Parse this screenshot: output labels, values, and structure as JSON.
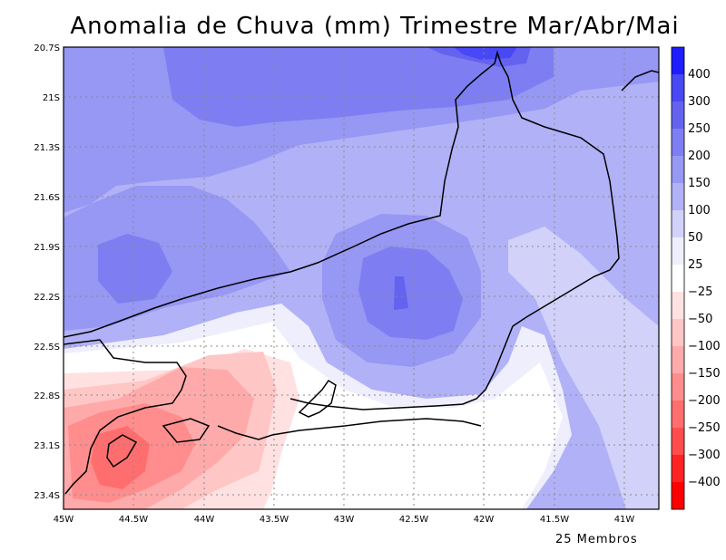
{
  "title": "Anomalia de Chuva (mm) Trimestre Mar/Abr/Mai",
  "footer": "25 Membros",
  "lat_ticks": [
    "20.7S",
    "21S",
    "21.3S",
    "21.6S",
    "21.9S",
    "22.2S",
    "22.5S",
    "22.8S",
    "23.1S",
    "23.4S"
  ],
  "lon_ticks": [
    "45W",
    "44.5W",
    "44W",
    "43.5W",
    "43W",
    "42.5W",
    "42W",
    "41.5W",
    "41W"
  ],
  "colorbar": {
    "labels": [
      "400",
      "300",
      "250",
      "200",
      "150",
      "100",
      "50",
      "25",
      "−25",
      "−50",
      "−100",
      "−150",
      "−200",
      "−250",
      "−300",
      "−400"
    ],
    "colors": [
      "#1d1dff",
      "#4848f4",
      "#6363f0",
      "#7e7ef2",
      "#9797f4",
      "#b1b1f7",
      "#d1d1fa",
      "#eeeefd",
      "#ffffff",
      "#ffe1e1",
      "#ffc6c6",
      "#ffaaaa",
      "#ff8d8d",
      "#ff6e6e",
      "#ff4d4d",
      "#ff2323",
      "#ff0000"
    ]
  }
}
